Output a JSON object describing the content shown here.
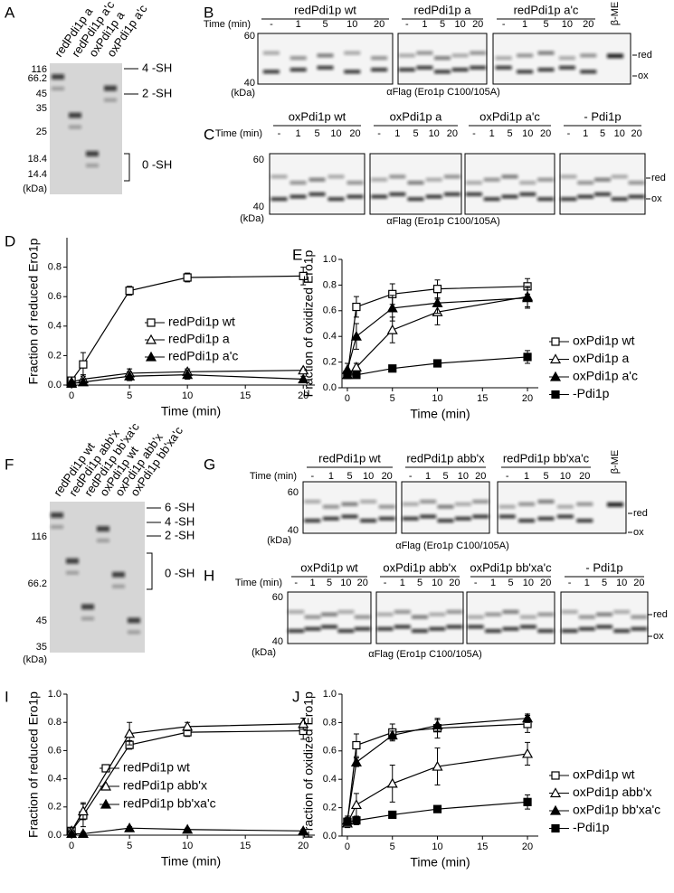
{
  "panel_letters": [
    "A",
    "B",
    "C",
    "D",
    "E",
    "F",
    "G",
    "H",
    "I",
    "J"
  ],
  "gel_A": {
    "lanes": [
      "redPdi1p a",
      "redPdi1p a'c",
      "oxPdi1p a",
      "oxPdi1p a'c"
    ],
    "mw": [
      "116",
      "66.2",
      "45",
      "35",
      "25",
      "18.4",
      "14.4"
    ],
    "mw_unit": "(kDa)",
    "species": [
      "4 -SH",
      "2 -SH",
      "0 -SH"
    ]
  },
  "gel_B": {
    "groups": [
      "redPdi1p wt",
      "redPdi1p a",
      "redPdi1p a'c"
    ],
    "control": "β-ME",
    "time_label": "Time (min)",
    "times": [
      "-",
      "1",
      "5",
      "10",
      "20"
    ],
    "mw": [
      "60",
      "40"
    ],
    "mw_unit": "(kDa)",
    "bands": [
      "red",
      "ox"
    ],
    "antibody": "αFlag (Ero1p C100/105A)"
  },
  "gel_C": {
    "groups": [
      "oxPdi1p wt",
      "oxPdi1p a",
      "oxPdi1p a'c",
      "- Pdi1p"
    ],
    "time_label": "Time (min)",
    "times": [
      "-",
      "1",
      "5",
      "10",
      "20"
    ],
    "mw": [
      "60",
      "40"
    ],
    "mw_unit": "(kDa)",
    "bands": [
      "red",
      "ox"
    ],
    "antibody": "αFlag (Ero1p C100/105A)"
  },
  "gel_F": {
    "lanes": [
      "redPdi1p wt",
      "redPdi1p abb'x",
      "redPdi1p bb'xa'c",
      "oxPdi1p wt",
      "oxPdi1p abb'x",
      "oxPdi1p bb'xa'c"
    ],
    "mw": [
      "116",
      "66.2",
      "45",
      "35"
    ],
    "mw_unit": "(kDa)",
    "species": [
      "6 -SH",
      "4 -SH",
      "2 -SH",
      "0 -SH"
    ]
  },
  "gel_G": {
    "groups": [
      "redPdi1p wt",
      "redPdi1p abb'x",
      "redPdi1p bb'xa'c"
    ],
    "control": "β-ME",
    "time_label": "Time (min)",
    "times": [
      "-",
      "1",
      "5",
      "10",
      "20"
    ],
    "mw": [
      "60",
      "40"
    ],
    "mw_unit": "(kDa)",
    "bands": [
      "red",
      "ox"
    ],
    "antibody": "αFlag (Ero1p C100/105A)"
  },
  "gel_H": {
    "groups": [
      "oxPdi1p wt",
      "oxPdi1p abb'x",
      "oxPdi1p bb'xa'c",
      "- Pdi1p"
    ],
    "time_label": "Time (min)",
    "times": [
      "-",
      "1",
      "5",
      "10",
      "20"
    ],
    "mw": [
      "60",
      "40"
    ],
    "mw_unit": "(kDa)",
    "bands": [
      "red",
      "ox"
    ],
    "antibody": "αFlag (Ero1p C100/105A)"
  },
  "chart_data": [
    {
      "type": "line",
      "x_label": "Time (min)",
      "y_label": "Fraction of reduced Ero1p",
      "x": [
        0,
        1,
        5,
        10,
        20
      ],
      "xlim": [
        -0.4,
        21
      ],
      "xticks": [
        0,
        5,
        10,
        15,
        20
      ],
      "ylim": [
        0,
        1.0
      ],
      "yticks": [
        {
          "value": 0,
          "label": "0.0"
        },
        0.2,
        0.4,
        0.6,
        0.8
      ],
      "legend": "inside",
      "series": [
        {
          "name": "redPdi1p wt",
          "color": "#000000",
          "marker": "square-open",
          "values": [
            0.03,
            0.14,
            0.64,
            0.73,
            0.74
          ],
          "errors": [
            0.02,
            0.08,
            0.03,
            0.03,
            0.06
          ]
        },
        {
          "name": "redPdi1p a",
          "color": "#000000",
          "marker": "triangle-open",
          "values": [
            0.02,
            0.04,
            0.08,
            0.09,
            0.1
          ],
          "errors": [
            0.01,
            0.03,
            0.03,
            0.02,
            0.01
          ]
        },
        {
          "name": "redPdi1p a'c",
          "color": "#000000",
          "marker": "triangle-filled",
          "values": [
            0.01,
            0.02,
            0.06,
            0.07,
            0.04
          ],
          "errors": [
            0.01,
            0.02,
            0.03,
            0.03,
            0.02
          ]
        }
      ]
    },
    {
      "type": "line",
      "x_label": "Time (min)",
      "y_label": "Fraction of oxidized Ero1p",
      "x": [
        0,
        1,
        5,
        10,
        20
      ],
      "xlim": [
        -0.6,
        21.2
      ],
      "xticks": [
        0,
        5,
        10,
        15,
        20
      ],
      "ylim": [
        0,
        1.0
      ],
      "yticks": [
        {
          "value": 0,
          "label": "0.0"
        },
        0.2,
        0.4,
        0.6,
        0.8,
        {
          "value": 1.0,
          "label": "1.0"
        }
      ],
      "legend": "right",
      "series": [
        {
          "name": "oxPdi1p wt",
          "color": "#000000",
          "marker": "square-open",
          "values": [
            0.1,
            0.63,
            0.73,
            0.77,
            0.79
          ],
          "errors": [
            0.03,
            0.08,
            0.08,
            0.07,
            0.06
          ]
        },
        {
          "name": "oxPdi1p a",
          "color": "#000000",
          "marker": "triangle-open",
          "values": [
            0.1,
            0.16,
            0.45,
            0.59,
            0.71
          ],
          "errors": [
            0.03,
            0.03,
            0.1,
            0.1,
            0.08
          ]
        },
        {
          "name": "oxPdi1p a'c",
          "color": "#000000",
          "marker": "triangle-filled",
          "values": [
            0.14,
            0.4,
            0.62,
            0.66,
            0.7
          ],
          "errors": [
            0.05,
            0.1,
            0.1,
            0.08,
            0.08
          ]
        },
        {
          "name": "-Pdi1p",
          "color": "#000000",
          "marker": "square-filled",
          "values": [
            0.1,
            0.1,
            0.15,
            0.19,
            0.24
          ],
          "errors": [
            0.02,
            0.01,
            0.01,
            0.01,
            0.05
          ]
        }
      ]
    },
    {
      "type": "line",
      "x_label": "Time (min)",
      "y_label": "Fraction of reduced Ero1p",
      "x": [
        0,
        1,
        5,
        10,
        20
      ],
      "xlim": [
        -0.4,
        21
      ],
      "xticks": [
        0,
        5,
        10,
        15,
        20
      ],
      "ylim": [
        0,
        1.0
      ],
      "yticks": [
        {
          "value": 0,
          "label": "0.0"
        },
        0.2,
        0.4,
        0.6,
        0.8,
        {
          "value": 1.0,
          "label": "1.0"
        }
      ],
      "legend": "inside",
      "series": [
        {
          "name": "redPdi1p wt",
          "color": "#000000",
          "marker": "square-open",
          "values": [
            0.03,
            0.14,
            0.64,
            0.73,
            0.74
          ],
          "errors": [
            0.02,
            0.08,
            0.03,
            0.03,
            0.06
          ]
        },
        {
          "name": "redPdi1p abb'x",
          "color": "#000000",
          "marker": "triangle-open",
          "values": [
            0.03,
            0.17,
            0.72,
            0.77,
            0.79
          ],
          "errors": [
            0.02,
            0.06,
            0.08,
            0.03,
            0.04
          ]
        },
        {
          "name": "redPdi1p bb'xa'c",
          "color": "#000000",
          "marker": "triangle-filled",
          "values": [
            0.01,
            0.01,
            0.05,
            0.04,
            0.03
          ],
          "errors": [
            0.01,
            0.01,
            0.01,
            0.01,
            0.01
          ]
        }
      ]
    },
    {
      "type": "line",
      "x_label": "Time (min)",
      "y_label": "Fraction of oxidized Ero1p",
      "x": [
        0,
        1,
        5,
        10,
        20
      ],
      "xlim": [
        -0.6,
        21.2
      ],
      "xticks": [
        0,
        5,
        10,
        15,
        20
      ],
      "ylim": [
        0,
        1.0
      ],
      "yticks": [
        {
          "value": 0,
          "label": "0.0"
        },
        0.2,
        0.4,
        0.6,
        0.8,
        {
          "value": 1.0,
          "label": "1.0"
        }
      ],
      "legend": "right",
      "series": [
        {
          "name": "oxPdi1p wt",
          "color": "#000000",
          "marker": "square-open",
          "values": [
            0.1,
            0.64,
            0.73,
            0.76,
            0.79
          ],
          "errors": [
            0.03,
            0.08,
            0.06,
            0.07,
            0.06
          ]
        },
        {
          "name": "oxPdi1p abb'x",
          "color": "#000000",
          "marker": "triangle-open",
          "values": [
            0.09,
            0.22,
            0.37,
            0.49,
            0.58
          ],
          "errors": [
            0.03,
            0.08,
            0.13,
            0.13,
            0.08
          ]
        },
        {
          "name": "oxPdi1p bb'xa'c",
          "color": "#000000",
          "marker": "triangle-filled",
          "values": [
            0.11,
            0.52,
            0.71,
            0.78,
            0.83
          ],
          "errors": [
            0.03,
            0.03,
            0.03,
            0.04,
            0.03
          ]
        },
        {
          "name": "-Pdi1p",
          "color": "#000000",
          "marker": "square-filled",
          "values": [
            0.1,
            0.11,
            0.15,
            0.19,
            0.24
          ],
          "errors": [
            0.02,
            0.03,
            0.01,
            0.01,
            0.05
          ]
        }
      ]
    }
  ]
}
